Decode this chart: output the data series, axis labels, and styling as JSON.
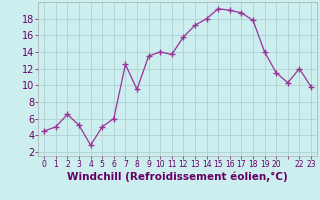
{
  "x": [
    0,
    1,
    2,
    3,
    4,
    5,
    6,
    7,
    8,
    9,
    10,
    11,
    12,
    13,
    14,
    15,
    16,
    17,
    18,
    19,
    20,
    21,
    22,
    23
  ],
  "y": [
    4.5,
    5.0,
    6.5,
    5.2,
    2.8,
    5.0,
    6.0,
    12.5,
    9.5,
    13.5,
    14.0,
    13.7,
    15.8,
    17.2,
    18.0,
    19.2,
    19.0,
    18.7,
    17.8,
    14.0,
    11.5,
    10.3,
    12.0,
    9.8
  ],
  "line_color": "#993399",
  "marker": "+",
  "marker_size": 4,
  "bg_color": "#cceeee",
  "grid_color": "#aacccc",
  "xlabel": "Windchill (Refroidissement éolien,°C)",
  "xlabel_fontsize": 7.5,
  "ylabel_ticks": [
    2,
    4,
    6,
    8,
    10,
    12,
    14,
    16,
    18
  ],
  "ytick_fontsize": 7.0,
  "xtick_fontsize": 5.5,
  "xlim": [
    -0.5,
    23.5
  ],
  "ylim": [
    1.5,
    20.0
  ],
  "xtick_labels": [
    "0",
    "1",
    "2",
    "3",
    "4",
    "5",
    "6",
    "7",
    "8",
    "9",
    "10",
    "11",
    "12",
    "13",
    "14",
    "15",
    "16",
    "17",
    "18",
    "19",
    "20",
    "",
    "22",
    "23"
  ]
}
